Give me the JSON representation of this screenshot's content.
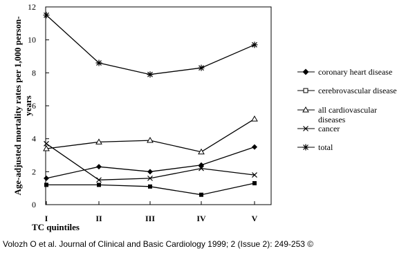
{
  "chart_data": {
    "type": "line",
    "title": "",
    "xlabel": "TC quintiles",
    "ylabel": "Age-adjusted mortality rates per 1,000 person-years",
    "categories": [
      "I",
      "II",
      "III",
      "IV",
      "V"
    ],
    "ylim": [
      0,
      12
    ],
    "yticks": [
      "0",
      "2",
      "4",
      "6",
      "8",
      "10",
      "12"
    ],
    "grid": false,
    "legend_position": "right",
    "series": [
      {
        "name": "coronary heart disease",
        "marker": "filled-diamond",
        "values": [
          1.6,
          2.3,
          2.0,
          2.4,
          3.5
        ]
      },
      {
        "name": "cerebrovascular disease",
        "marker": "filled-square",
        "values": [
          1.2,
          1.2,
          1.1,
          0.6,
          1.3
        ]
      },
      {
        "name": "all cardiovascular diseases",
        "marker": "open-triangle",
        "values": [
          3.4,
          3.8,
          3.9,
          3.2,
          5.2
        ]
      },
      {
        "name": "cancer",
        "marker": "x-cross",
        "values": [
          3.7,
          1.5,
          1.6,
          2.2,
          1.8
        ]
      },
      {
        "name": "total",
        "marker": "asterisk",
        "values": [
          11.5,
          8.6,
          7.9,
          8.3,
          9.7
        ]
      }
    ]
  },
  "legend_lines": {
    "coronary": [
      "coronary heart disease"
    ],
    "cerebro": [
      "cerebrovascular disease"
    ],
    "allcvd": [
      "all cardiovascular",
      "diseases"
    ],
    "cancer": [
      "cancer"
    ],
    "total": [
      "total"
    ]
  },
  "ylabel_lines": [
    "Age-adjusted mortality rates per 1,000 person-",
    "years"
  ],
  "citation": "Volozh O et al. Journal of Clinical and Basic Cardiology 1999; 2 (Issue 2): 249-253 ©"
}
